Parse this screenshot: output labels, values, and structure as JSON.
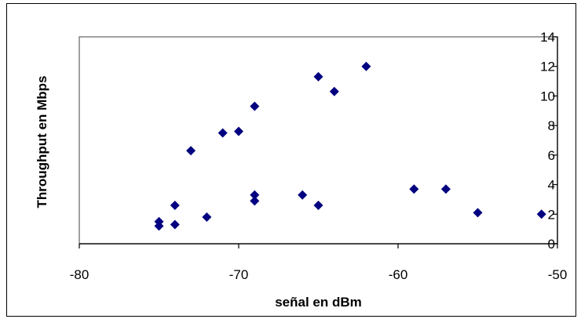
{
  "chart_data": {
    "type": "scatter",
    "title": "",
    "xlabel": "señal en dBm",
    "ylabel": "Throughput en Mbps",
    "xlim": [
      -80,
      -50
    ],
    "ylim": [
      0,
      14
    ],
    "x_ticks": [
      "-80",
      "-70",
      "-60",
      "-50"
    ],
    "y_ticks": [
      "0",
      "2",
      "4",
      "6",
      "8",
      "10",
      "12",
      "14"
    ],
    "grid": false,
    "legend": "none",
    "marker": "diamond",
    "marker_color": "#000080",
    "points": [
      {
        "x": -75,
        "y": 1.5
      },
      {
        "x": -75,
        "y": 1.2
      },
      {
        "x": -74,
        "y": 2.6
      },
      {
        "x": -74,
        "y": 1.3
      },
      {
        "x": -73,
        "y": 6.3
      },
      {
        "x": -72,
        "y": 1.8
      },
      {
        "x": -71,
        "y": 7.5
      },
      {
        "x": -70,
        "y": 7.6
      },
      {
        "x": -69,
        "y": 9.3
      },
      {
        "x": -69,
        "y": 3.3
      },
      {
        "x": -69,
        "y": 2.9
      },
      {
        "x": -66,
        "y": 3.3
      },
      {
        "x": -65,
        "y": 11.3
      },
      {
        "x": -65,
        "y": 2.6
      },
      {
        "x": -64,
        "y": 10.3
      },
      {
        "x": -62,
        "y": 12.0
      },
      {
        "x": -59,
        "y": 3.7
      },
      {
        "x": -57,
        "y": 3.7
      },
      {
        "x": -55,
        "y": 2.1
      },
      {
        "x": -51,
        "y": 2.0
      }
    ]
  }
}
